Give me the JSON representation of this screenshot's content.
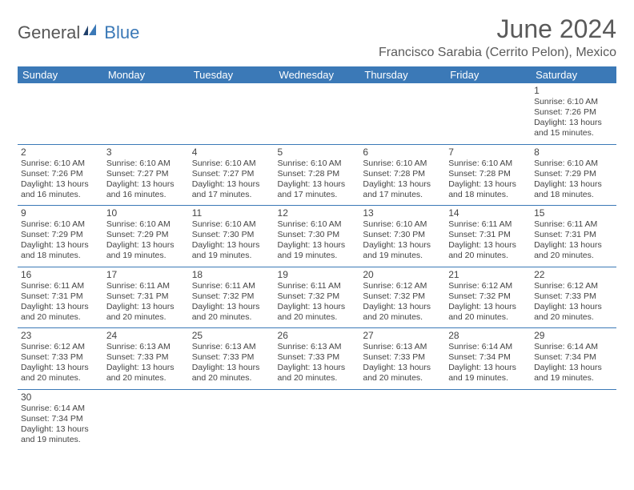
{
  "logo": {
    "part1": "General",
    "part2": "Blue"
  },
  "title": "June 2024",
  "location": "Francisco Sarabia (Cerrito Pelon), Mexico",
  "colors": {
    "header_bg": "#3b79b7",
    "header_text": "#ffffff",
    "border": "#3b79b7",
    "text": "#3a3a3a",
    "title_text": "#5a5a5a"
  },
  "weekdays": [
    "Sunday",
    "Monday",
    "Tuesday",
    "Wednesday",
    "Thursday",
    "Friday",
    "Saturday"
  ],
  "weeks": [
    [
      null,
      null,
      null,
      null,
      null,
      null,
      {
        "n": "1",
        "sr": "6:10 AM",
        "ss": "7:26 PM",
        "dl": "13 hours and 15 minutes."
      }
    ],
    [
      {
        "n": "2",
        "sr": "6:10 AM",
        "ss": "7:26 PM",
        "dl": "13 hours and 16 minutes."
      },
      {
        "n": "3",
        "sr": "6:10 AM",
        "ss": "7:27 PM",
        "dl": "13 hours and 16 minutes."
      },
      {
        "n": "4",
        "sr": "6:10 AM",
        "ss": "7:27 PM",
        "dl": "13 hours and 17 minutes."
      },
      {
        "n": "5",
        "sr": "6:10 AM",
        "ss": "7:28 PM",
        "dl": "13 hours and 17 minutes."
      },
      {
        "n": "6",
        "sr": "6:10 AM",
        "ss": "7:28 PM",
        "dl": "13 hours and 17 minutes."
      },
      {
        "n": "7",
        "sr": "6:10 AM",
        "ss": "7:28 PM",
        "dl": "13 hours and 18 minutes."
      },
      {
        "n": "8",
        "sr": "6:10 AM",
        "ss": "7:29 PM",
        "dl": "13 hours and 18 minutes."
      }
    ],
    [
      {
        "n": "9",
        "sr": "6:10 AM",
        "ss": "7:29 PM",
        "dl": "13 hours and 18 minutes."
      },
      {
        "n": "10",
        "sr": "6:10 AM",
        "ss": "7:29 PM",
        "dl": "13 hours and 19 minutes."
      },
      {
        "n": "11",
        "sr": "6:10 AM",
        "ss": "7:30 PM",
        "dl": "13 hours and 19 minutes."
      },
      {
        "n": "12",
        "sr": "6:10 AM",
        "ss": "7:30 PM",
        "dl": "13 hours and 19 minutes."
      },
      {
        "n": "13",
        "sr": "6:10 AM",
        "ss": "7:30 PM",
        "dl": "13 hours and 19 minutes."
      },
      {
        "n": "14",
        "sr": "6:11 AM",
        "ss": "7:31 PM",
        "dl": "13 hours and 20 minutes."
      },
      {
        "n": "15",
        "sr": "6:11 AM",
        "ss": "7:31 PM",
        "dl": "13 hours and 20 minutes."
      }
    ],
    [
      {
        "n": "16",
        "sr": "6:11 AM",
        "ss": "7:31 PM",
        "dl": "13 hours and 20 minutes."
      },
      {
        "n": "17",
        "sr": "6:11 AM",
        "ss": "7:31 PM",
        "dl": "13 hours and 20 minutes."
      },
      {
        "n": "18",
        "sr": "6:11 AM",
        "ss": "7:32 PM",
        "dl": "13 hours and 20 minutes."
      },
      {
        "n": "19",
        "sr": "6:11 AM",
        "ss": "7:32 PM",
        "dl": "13 hours and 20 minutes."
      },
      {
        "n": "20",
        "sr": "6:12 AM",
        "ss": "7:32 PM",
        "dl": "13 hours and 20 minutes."
      },
      {
        "n": "21",
        "sr": "6:12 AM",
        "ss": "7:32 PM",
        "dl": "13 hours and 20 minutes."
      },
      {
        "n": "22",
        "sr": "6:12 AM",
        "ss": "7:33 PM",
        "dl": "13 hours and 20 minutes."
      }
    ],
    [
      {
        "n": "23",
        "sr": "6:12 AM",
        "ss": "7:33 PM",
        "dl": "13 hours and 20 minutes."
      },
      {
        "n": "24",
        "sr": "6:13 AM",
        "ss": "7:33 PM",
        "dl": "13 hours and 20 minutes."
      },
      {
        "n": "25",
        "sr": "6:13 AM",
        "ss": "7:33 PM",
        "dl": "13 hours and 20 minutes."
      },
      {
        "n": "26",
        "sr": "6:13 AM",
        "ss": "7:33 PM",
        "dl": "13 hours and 20 minutes."
      },
      {
        "n": "27",
        "sr": "6:13 AM",
        "ss": "7:33 PM",
        "dl": "13 hours and 20 minutes."
      },
      {
        "n": "28",
        "sr": "6:14 AM",
        "ss": "7:34 PM",
        "dl": "13 hours and 19 minutes."
      },
      {
        "n": "29",
        "sr": "6:14 AM",
        "ss": "7:34 PM",
        "dl": "13 hours and 19 minutes."
      }
    ],
    [
      {
        "n": "30",
        "sr": "6:14 AM",
        "ss": "7:34 PM",
        "dl": "13 hours and 19 minutes."
      },
      null,
      null,
      null,
      null,
      null,
      null
    ]
  ],
  "labels": {
    "sunrise": "Sunrise:",
    "sunset": "Sunset:",
    "daylight": "Daylight:"
  }
}
